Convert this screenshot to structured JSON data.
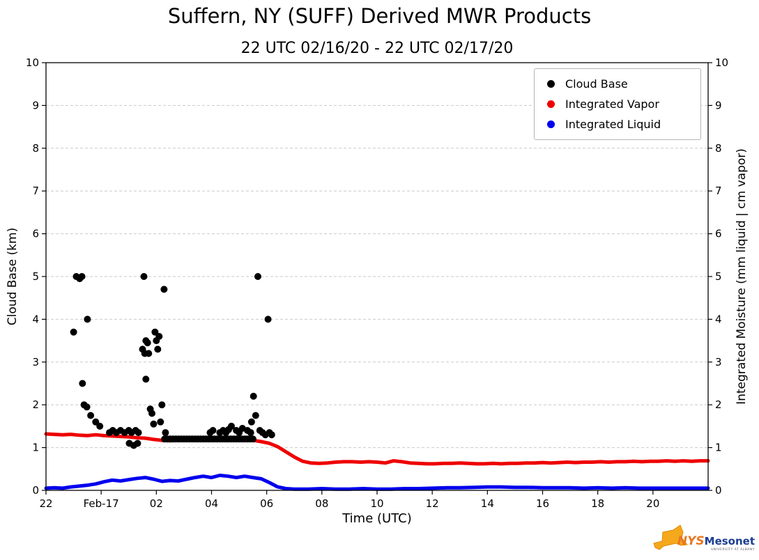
{
  "header": {
    "title": "Suffern, NY (SUFF) Derived MWR Products",
    "subtitle": "22 UTC 02/16/20 - 22 UTC 02/17/20"
  },
  "axes": {
    "x_label": "Time (UTC)",
    "y_left_label": "Cloud Base (km)",
    "y_right_label": "Integrated Moisture (mm liquid | cm vapor)"
  },
  "legend": {
    "items": [
      {
        "label": "Cloud Base",
        "color": "#000000"
      },
      {
        "label": "Integrated Vapor",
        "color": "#ee0000"
      },
      {
        "label": "Integrated Liquid",
        "color": "#0000ee"
      }
    ]
  },
  "logo": {
    "nys": "NYS",
    "mesonet": "Mesonet",
    "tagline": "UNIVERSITY AT ALBANY"
  },
  "chart_data": {
    "type": "scatter",
    "title": "Suffern, NY (SUFF) Derived MWR Products",
    "subtitle": "22 UTC 02/16/20 - 22 UTC 02/17/20",
    "xlabel": "Time (UTC)",
    "ylabel_left": "Cloud Base (km)",
    "ylabel_right": "Integrated Moisture (mm liquid | cm vapor)",
    "x_unit": "hours since 22 UTC 02/16/20",
    "xlim": [
      0,
      24
    ],
    "ylim": [
      0,
      10
    ],
    "grid": "horizontal dashed at integer y values 1-9",
    "legend_position": "upper right",
    "x_ticks": [
      {
        "t": 0,
        "label": "22"
      },
      {
        "t": 2,
        "label": "Feb-17"
      },
      {
        "t": 4,
        "label": "02"
      },
      {
        "t": 6,
        "label": "04"
      },
      {
        "t": 8,
        "label": "06"
      },
      {
        "t": 10,
        "label": "08"
      },
      {
        "t": 12,
        "label": "10"
      },
      {
        "t": 14,
        "label": "12"
      },
      {
        "t": 16,
        "label": "14"
      },
      {
        "t": 18,
        "label": "16"
      },
      {
        "t": 20,
        "label": "18"
      },
      {
        "t": 22,
        "label": "20"
      }
    ],
    "y_ticks": [
      0,
      1,
      2,
      3,
      4,
      5,
      6,
      7,
      8,
      9,
      10
    ],
    "series": [
      {
        "name": "Cloud Base",
        "type": "scatter",
        "color": "#000000",
        "marker_size": 10,
        "points": [
          [
            1.0,
            3.7
          ],
          [
            1.1,
            5.0
          ],
          [
            1.22,
            4.95
          ],
          [
            1.3,
            5.0
          ],
          [
            1.5,
            4.0
          ],
          [
            1.32,
            2.5
          ],
          [
            1.38,
            2.0
          ],
          [
            1.48,
            1.95
          ],
          [
            1.62,
            1.75
          ],
          [
            1.8,
            1.6
          ],
          [
            1.95,
            1.5
          ],
          [
            2.3,
            1.35
          ],
          [
            2.42,
            1.4
          ],
          [
            2.55,
            1.35
          ],
          [
            2.7,
            1.4
          ],
          [
            2.85,
            1.35
          ],
          [
            3.0,
            1.4
          ],
          [
            3.1,
            1.35
          ],
          [
            3.25,
            1.4
          ],
          [
            3.35,
            1.35
          ],
          [
            3.02,
            1.1
          ],
          [
            3.18,
            1.05
          ],
          [
            3.32,
            1.1
          ],
          [
            3.5,
            3.3
          ],
          [
            3.55,
            5.0
          ],
          [
            3.58,
            3.2
          ],
          [
            3.62,
            3.5
          ],
          [
            3.62,
            2.6
          ],
          [
            3.68,
            3.45
          ],
          [
            3.72,
            3.2
          ],
          [
            3.78,
            1.9
          ],
          [
            3.84,
            1.8
          ],
          [
            3.9,
            1.55
          ],
          [
            3.95,
            3.7
          ],
          [
            4.0,
            3.5
          ],
          [
            4.05,
            3.3
          ],
          [
            4.1,
            3.6
          ],
          [
            4.15,
            1.6
          ],
          [
            4.2,
            2.0
          ],
          [
            4.28,
            4.7
          ],
          [
            4.33,
            1.35
          ],
          [
            4.3,
            1.2
          ],
          [
            4.4,
            1.2
          ],
          [
            4.5,
            1.2
          ],
          [
            4.6,
            1.2
          ],
          [
            4.7,
            1.2
          ],
          [
            4.8,
            1.2
          ],
          [
            4.9,
            1.2
          ],
          [
            5.0,
            1.2
          ],
          [
            5.1,
            1.2
          ],
          [
            5.2,
            1.2
          ],
          [
            5.3,
            1.2
          ],
          [
            5.4,
            1.2
          ],
          [
            5.5,
            1.2
          ],
          [
            5.6,
            1.2
          ],
          [
            5.7,
            1.2
          ],
          [
            5.8,
            1.2
          ],
          [
            5.9,
            1.2
          ],
          [
            6.0,
            1.2
          ],
          [
            6.1,
            1.2
          ],
          [
            6.2,
            1.2
          ],
          [
            6.3,
            1.2
          ],
          [
            6.4,
            1.2
          ],
          [
            6.5,
            1.2
          ],
          [
            6.6,
            1.2
          ],
          [
            6.7,
            1.2
          ],
          [
            6.8,
            1.2
          ],
          [
            6.9,
            1.2
          ],
          [
            7.0,
            1.2
          ],
          [
            7.1,
            1.2
          ],
          [
            7.2,
            1.2
          ],
          [
            7.3,
            1.2
          ],
          [
            7.4,
            1.2
          ],
          [
            7.5,
            1.2
          ],
          [
            5.95,
            1.35
          ],
          [
            6.05,
            1.4
          ],
          [
            6.3,
            1.35
          ],
          [
            6.42,
            1.4
          ],
          [
            6.52,
            1.35
          ],
          [
            6.62,
            1.42
          ],
          [
            6.72,
            1.5
          ],
          [
            6.9,
            1.4
          ],
          [
            7.0,
            1.35
          ],
          [
            7.12,
            1.45
          ],
          [
            7.3,
            1.4
          ],
          [
            7.42,
            1.35
          ],
          [
            7.45,
            1.6
          ],
          [
            7.52,
            2.2
          ],
          [
            7.6,
            1.75
          ],
          [
            7.68,
            5.0
          ],
          [
            7.75,
            1.4
          ],
          [
            7.85,
            1.35
          ],
          [
            7.95,
            1.3
          ],
          [
            8.05,
            4.0
          ],
          [
            8.1,
            1.35
          ],
          [
            8.18,
            1.3
          ]
        ]
      },
      {
        "name": "Integrated Vapor",
        "type": "line",
        "color": "#ee0000",
        "width": 5,
        "points": [
          [
            0,
            1.32
          ],
          [
            0.3,
            1.31
          ],
          [
            0.6,
            1.3
          ],
          [
            0.9,
            1.31
          ],
          [
            1.2,
            1.29
          ],
          [
            1.5,
            1.28
          ],
          [
            1.8,
            1.3
          ],
          [
            2.1,
            1.28
          ],
          [
            2.4,
            1.27
          ],
          [
            2.7,
            1.26
          ],
          [
            3,
            1.25
          ],
          [
            3.3,
            1.23
          ],
          [
            3.6,
            1.22
          ],
          [
            3.9,
            1.19
          ],
          [
            4.2,
            1.17
          ],
          [
            4.5,
            1.16
          ],
          [
            4.8,
            1.17
          ],
          [
            5.1,
            1.19
          ],
          [
            5.4,
            1.2
          ],
          [
            5.7,
            1.2
          ],
          [
            6,
            1.19
          ],
          [
            6.3,
            1.18
          ],
          [
            6.6,
            1.19
          ],
          [
            6.9,
            1.2
          ],
          [
            7.2,
            1.19
          ],
          [
            7.5,
            1.17
          ],
          [
            7.8,
            1.14
          ],
          [
            8.1,
            1.1
          ],
          [
            8.4,
            1.02
          ],
          [
            8.7,
            0.9
          ],
          [
            9,
            0.78
          ],
          [
            9.3,
            0.68
          ],
          [
            9.6,
            0.64
          ],
          [
            9.9,
            0.63
          ],
          [
            10.2,
            0.64
          ],
          [
            10.5,
            0.66
          ],
          [
            10.8,
            0.67
          ],
          [
            11.1,
            0.67
          ],
          [
            11.4,
            0.66
          ],
          [
            11.7,
            0.67
          ],
          [
            12,
            0.66
          ],
          [
            12.3,
            0.64
          ],
          [
            12.6,
            0.69
          ],
          [
            12.9,
            0.67
          ],
          [
            13.2,
            0.64
          ],
          [
            13.5,
            0.63
          ],
          [
            13.8,
            0.62
          ],
          [
            14.1,
            0.62
          ],
          [
            14.4,
            0.63
          ],
          [
            14.7,
            0.63
          ],
          [
            15,
            0.64
          ],
          [
            15.3,
            0.63
          ],
          [
            15.6,
            0.62
          ],
          [
            15.9,
            0.62
          ],
          [
            16.2,
            0.63
          ],
          [
            16.5,
            0.62
          ],
          [
            16.8,
            0.63
          ],
          [
            17.1,
            0.63
          ],
          [
            17.4,
            0.64
          ],
          [
            17.7,
            0.64
          ],
          [
            18,
            0.65
          ],
          [
            18.3,
            0.64
          ],
          [
            18.6,
            0.65
          ],
          [
            18.9,
            0.66
          ],
          [
            19.2,
            0.65
          ],
          [
            19.5,
            0.66
          ],
          [
            19.8,
            0.66
          ],
          [
            20.1,
            0.67
          ],
          [
            20.4,
            0.66
          ],
          [
            20.7,
            0.67
          ],
          [
            21,
            0.67
          ],
          [
            21.3,
            0.68
          ],
          [
            21.6,
            0.67
          ],
          [
            21.9,
            0.68
          ],
          [
            22.2,
            0.68
          ],
          [
            22.5,
            0.69
          ],
          [
            22.8,
            0.68
          ],
          [
            23.1,
            0.69
          ],
          [
            23.4,
            0.68
          ],
          [
            23.7,
            0.69
          ],
          [
            24,
            0.69
          ]
        ]
      },
      {
        "name": "Integrated Liquid",
        "type": "line",
        "color": "#0000ee",
        "width": 5,
        "points": [
          [
            0,
            0.05
          ],
          [
            0.3,
            0.06
          ],
          [
            0.6,
            0.05
          ],
          [
            0.9,
            0.08
          ],
          [
            1.2,
            0.1
          ],
          [
            1.5,
            0.12
          ],
          [
            1.8,
            0.15
          ],
          [
            2.1,
            0.2
          ],
          [
            2.4,
            0.24
          ],
          [
            2.7,
            0.22
          ],
          [
            3,
            0.25
          ],
          [
            3.3,
            0.28
          ],
          [
            3.6,
            0.3
          ],
          [
            3.9,
            0.26
          ],
          [
            4.2,
            0.21
          ],
          [
            4.5,
            0.23
          ],
          [
            4.8,
            0.22
          ],
          [
            5.1,
            0.26
          ],
          [
            5.4,
            0.3
          ],
          [
            5.7,
            0.33
          ],
          [
            6,
            0.3
          ],
          [
            6.3,
            0.35
          ],
          [
            6.6,
            0.33
          ],
          [
            6.9,
            0.3
          ],
          [
            7.2,
            0.33
          ],
          [
            7.5,
            0.3
          ],
          [
            7.8,
            0.27
          ],
          [
            8.1,
            0.18
          ],
          [
            8.4,
            0.08
          ],
          [
            8.7,
            0.04
          ],
          [
            9,
            0.03
          ],
          [
            9.5,
            0.03
          ],
          [
            10,
            0.04
          ],
          [
            10.5,
            0.03
          ],
          [
            11,
            0.03
          ],
          [
            11.5,
            0.04
          ],
          [
            12,
            0.03
          ],
          [
            12.5,
            0.03
          ],
          [
            13,
            0.04
          ],
          [
            13.5,
            0.04
          ],
          [
            14,
            0.05
          ],
          [
            14.5,
            0.06
          ],
          [
            15,
            0.06
          ],
          [
            15.5,
            0.07
          ],
          [
            16,
            0.08
          ],
          [
            16.5,
            0.08
          ],
          [
            17,
            0.07
          ],
          [
            17.5,
            0.07
          ],
          [
            18,
            0.06
          ],
          [
            18.5,
            0.06
          ],
          [
            19,
            0.06
          ],
          [
            19.5,
            0.05
          ],
          [
            20,
            0.06
          ],
          [
            20.5,
            0.05
          ],
          [
            21,
            0.06
          ],
          [
            21.5,
            0.05
          ],
          [
            22,
            0.05
          ],
          [
            22.5,
            0.05
          ],
          [
            23,
            0.05
          ],
          [
            23.5,
            0.05
          ],
          [
            24,
            0.05
          ]
        ]
      }
    ]
  }
}
